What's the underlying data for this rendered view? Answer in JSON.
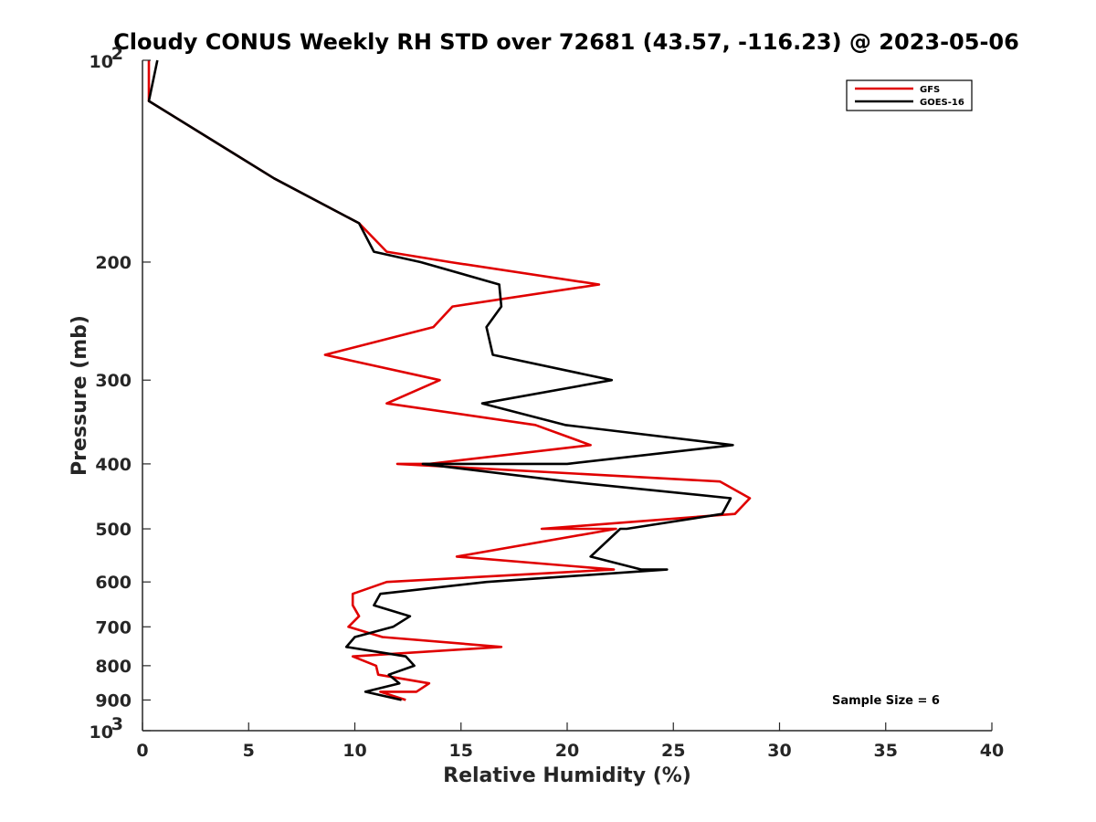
{
  "chart_data": {
    "type": "line",
    "title": "Cloudy CONUS Weekly RH STD over 72681 (43.57, -116.23) @ 2023-05-06",
    "xlabel": "Relative Humidity (%)",
    "ylabel": "Pressure (mb)",
    "xlim": [
      0,
      40
    ],
    "ylim": [
      100,
      1000
    ],
    "y_scale": "log",
    "y_reversed": true,
    "grid": false,
    "legend_position": "top-right",
    "x_ticks": [
      0,
      5,
      10,
      15,
      20,
      25,
      30,
      35,
      40
    ],
    "x_tick_labels": [
      "0",
      "5",
      "10",
      "15",
      "20",
      "25",
      "30",
      "35",
      "40"
    ],
    "y_ticks": [
      200,
      300,
      400,
      500,
      600,
      700,
      800,
      900
    ],
    "y_tick_labels": [
      "200",
      "300",
      "400",
      "500",
      "600",
      "700",
      "800",
      "900"
    ],
    "y_decade_ticks": [
      {
        "value": 100,
        "base": "10",
        "exp": "2"
      },
      {
        "value": 1000,
        "base": "10",
        "exp": "3"
      }
    ],
    "annotation": "Sample Size = 6",
    "series": [
      {
        "name": "GFS",
        "color": "#e00000",
        "points": [
          [
            0.3,
            100
          ],
          [
            0.3,
            115
          ],
          [
            6.2,
            150
          ],
          [
            10.2,
            175
          ],
          [
            11.5,
            193
          ],
          [
            14.5,
            200
          ],
          [
            21.5,
            216
          ],
          [
            14.6,
            233
          ],
          [
            13.7,
            250
          ],
          [
            8.6,
            275
          ],
          [
            14.0,
            300
          ],
          [
            11.5,
            325
          ],
          [
            18.5,
            350
          ],
          [
            21.1,
            375
          ],
          [
            13.5,
            400
          ],
          [
            12.0,
            400
          ],
          [
            27.2,
            425
          ],
          [
            28.6,
            450
          ],
          [
            27.9,
            475
          ],
          [
            18.8,
            500
          ],
          [
            22.3,
            500
          ],
          [
            14.8,
            550
          ],
          [
            22.2,
            575
          ],
          [
            11.5,
            600
          ],
          [
            9.9,
            625
          ],
          [
            9.9,
            650
          ],
          [
            10.2,
            675
          ],
          [
            9.7,
            700
          ],
          [
            11.3,
            725
          ],
          [
            16.9,
            750
          ],
          [
            9.9,
            775
          ],
          [
            11.0,
            800
          ],
          [
            11.1,
            825
          ],
          [
            13.5,
            850
          ],
          [
            12.9,
            875
          ],
          [
            11.2,
            875
          ],
          [
            12.4,
            900
          ]
        ]
      },
      {
        "name": "GOES-16",
        "color": "#000000",
        "points": [
          [
            0.7,
            100
          ],
          [
            0.3,
            115
          ],
          [
            6.2,
            150
          ],
          [
            10.2,
            175
          ],
          [
            10.9,
            193
          ],
          [
            13.1,
            200
          ],
          [
            16.8,
            216
          ],
          [
            16.9,
            233
          ],
          [
            16.2,
            250
          ],
          [
            16.5,
            275
          ],
          [
            22.1,
            300
          ],
          [
            16.0,
            325
          ],
          [
            19.9,
            350
          ],
          [
            27.8,
            375
          ],
          [
            20.0,
            400
          ],
          [
            13.2,
            400
          ],
          [
            20.0,
            425
          ],
          [
            27.7,
            450
          ],
          [
            27.3,
            475
          ],
          [
            22.8,
            500
          ],
          [
            22.5,
            500
          ],
          [
            21.1,
            550
          ],
          [
            23.5,
            575
          ],
          [
            24.7,
            575
          ],
          [
            16.2,
            600
          ],
          [
            11.2,
            625
          ],
          [
            10.9,
            650
          ],
          [
            12.6,
            675
          ],
          [
            11.8,
            700
          ],
          [
            10.0,
            725
          ],
          [
            9.6,
            750
          ],
          [
            12.4,
            775
          ],
          [
            12.8,
            800
          ],
          [
            11.6,
            825
          ],
          [
            12.1,
            850
          ],
          [
            10.5,
            875
          ],
          [
            12.2,
            900
          ]
        ]
      }
    ]
  }
}
